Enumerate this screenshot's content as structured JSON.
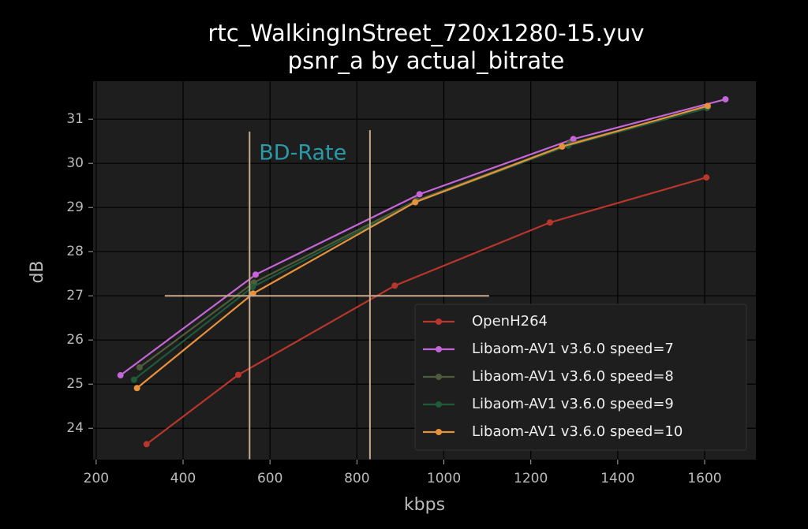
{
  "chart_data": {
    "type": "line",
    "title": "rtc_WalkingInStreet_720x1280-15.yuv",
    "subtitle": "psnr_a by actual_bitrate",
    "xlabel": "kbps",
    "ylabel": "dB",
    "xlim": [
      193,
      1718
    ],
    "ylim": [
      23.29,
      31.86
    ],
    "xticks": [
      200,
      400,
      600,
      800,
      1000,
      1200,
      1400,
      1600
    ],
    "yticks": [
      24,
      25,
      26,
      27,
      28,
      29,
      30,
      31
    ],
    "grid": true,
    "legend": "lower right",
    "series": [
      {
        "name": "OpenH264",
        "color": "#b8362c",
        "x": [
          316,
          527,
          887,
          1244,
          1604
        ],
        "values": [
          23.64,
          25.21,
          27.23,
          28.66,
          29.68
        ]
      },
      {
        "name": "Libaom-AV1 v3.6.0 speed=7",
        "color": "#c466d8",
        "x": [
          256,
          567,
          944,
          1298,
          1648
        ],
        "values": [
          25.2,
          27.48,
          29.3,
          30.55,
          31.45
        ]
      },
      {
        "name": "Libaom-AV1 v3.6.0 speed=8",
        "color": "#4d5c3b",
        "x": [
          300,
          563,
          937,
          1289,
          1607
        ],
        "values": [
          25.38,
          27.3,
          29.16,
          30.45,
          31.27
        ]
      },
      {
        "name": "Libaom-AV1 v3.6.0 speed=9",
        "color": "#1f5a3b",
        "x": [
          287,
          560,
          935,
          1286,
          1605
        ],
        "values": [
          25.1,
          27.2,
          29.12,
          30.4,
          31.25
        ]
      },
      {
        "name": "Libaom-AV1 v3.6.0 speed=10",
        "color": "#e8923b",
        "x": [
          294,
          561,
          934,
          1272,
          1607
        ],
        "values": [
          24.91,
          27.05,
          29.12,
          30.38,
          31.3
        ]
      }
    ],
    "annotation": {
      "label": "BD-Rate",
      "color": "#caa98c",
      "hline": {
        "y": 27,
        "x": [
          358,
          1104
        ]
      },
      "vlines": [
        {
          "x": 553,
          "y": [
            23.3,
            30.72
          ]
        },
        {
          "x": 830,
          "y": [
            23.3,
            30.75
          ]
        }
      ]
    }
  }
}
